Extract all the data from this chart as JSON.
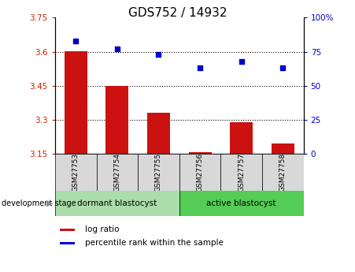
{
  "title": "GDS752 / 14932",
  "samples": [
    "GSM27753",
    "GSM27754",
    "GSM27755",
    "GSM27756",
    "GSM27757",
    "GSM27758"
  ],
  "log_ratio": [
    3.601,
    3.45,
    3.33,
    3.157,
    3.29,
    3.195
  ],
  "percentile_rank": [
    83,
    77,
    73,
    63,
    68,
    63
  ],
  "bar_color": "#cc1111",
  "dot_color": "#0000cc",
  "baseline": 3.15,
  "ylim_left": [
    3.15,
    3.75
  ],
  "ylim_right": [
    0,
    100
  ],
  "yticks_left": [
    3.15,
    3.3,
    3.45,
    3.6,
    3.75
  ],
  "ytick_labels_left": [
    "3.15",
    "3.3",
    "3.45",
    "3.6",
    "3.75"
  ],
  "yticks_right": [
    0,
    25,
    50,
    75,
    100
  ],
  "ytick_labels_right": [
    "0",
    "25",
    "50",
    "75",
    "100%"
  ],
  "hgrid_vals": [
    3.3,
    3.45,
    3.6
  ],
  "groups": [
    {
      "label": "dormant blastocyst",
      "start": 0,
      "end": 2,
      "color": "#aaddaa"
    },
    {
      "label": "active blastocyst",
      "start": 3,
      "end": 5,
      "color": "#55cc55"
    }
  ],
  "group_label": "development stage",
  "legend_items": [
    {
      "label": "log ratio",
      "color": "#cc1111"
    },
    {
      "label": "percentile rank within the sample",
      "color": "#0000cc"
    }
  ],
  "bar_width": 0.55,
  "title_fontsize": 11,
  "tick_fontsize": 7.5,
  "label_fontsize": 7.5,
  "tick_color_left": "#cc2200",
  "tick_color_right": "#0000cc"
}
